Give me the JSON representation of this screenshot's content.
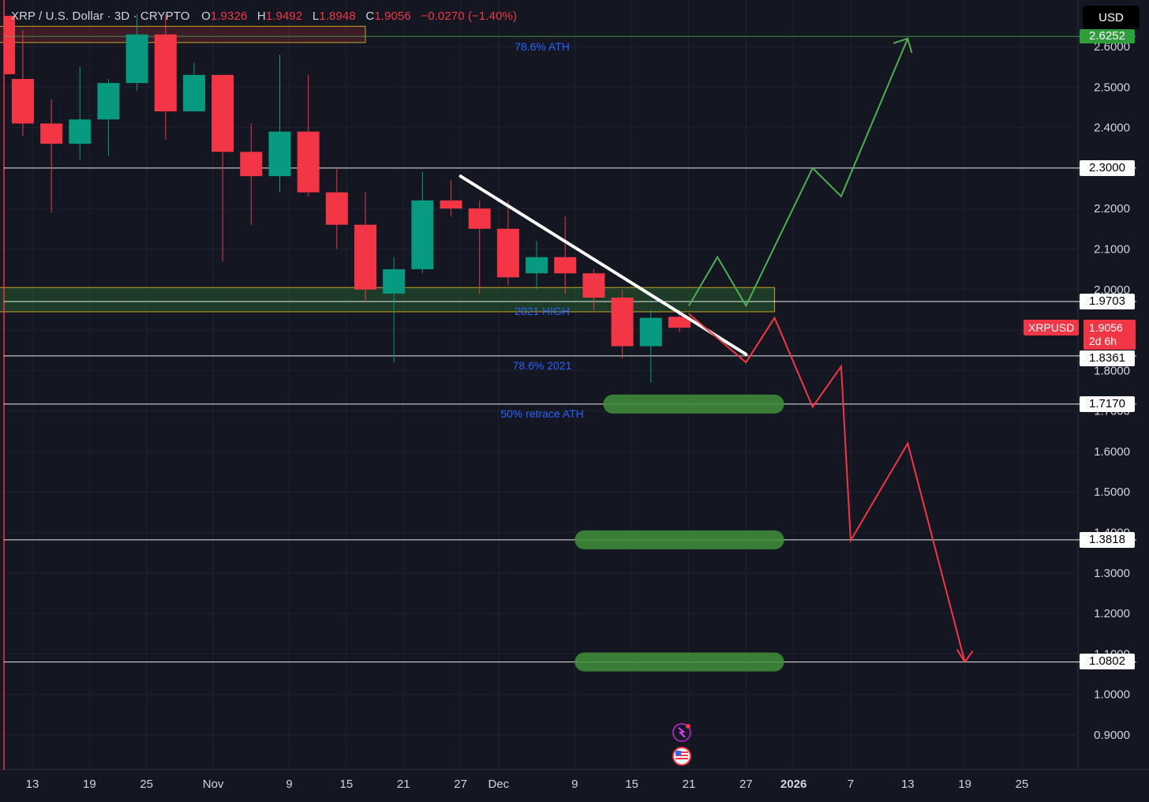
{
  "header": {
    "symbol": "XRP / U.S. Dollar · 3D · CRYPTO",
    "o_label": "O",
    "o_value": "1.9326",
    "h_label": "H",
    "h_value": "1.9492",
    "l_label": "L",
    "l_value": "1.8948",
    "c_label": "C",
    "c_value": "1.9056",
    "change": "−0.0270 (−1.40%)"
  },
  "currency_button": "USD",
  "symbol_tag": "XRPUSD",
  "current_price": "1.9056",
  "countdown": "2d 6h",
  "ath_tag": "2.6252",
  "annotations": {
    "ath_786": "78.6% ATH",
    "high_2021": "2021 HIGH",
    "ret_786_2021": "78.6% 2021",
    "ret_50_ath": "50% retrace ATH"
  },
  "colors": {
    "background": "#141722",
    "up": "#089981",
    "down": "#f23645",
    "bullish_path": "#4caf50",
    "bearish_path": "#f23645",
    "annotation_text": "#2962ff",
    "zone_border": "#c9a227"
  },
  "icons": [
    "ai-sparkle-icon",
    "us-flag-icon"
  ],
  "chart_data": {
    "type": "candlestick",
    "timeframe": "3D",
    "y_axis": {
      "range": [
        0.86,
        2.66
      ],
      "ticks": [
        "2.6000",
        "2.5000",
        "2.4000",
        "2.3000",
        "2.2000",
        "2.1000",
        "2.0000",
        "1.9000",
        "1.8000",
        "1.7000",
        "1.6000",
        "1.5000",
        "1.4000",
        "1.3000",
        "1.2000",
        "1.1000",
        "1.0000",
        "0.9000"
      ],
      "tick_values": [
        2.6,
        2.5,
        2.4,
        2.3,
        2.2,
        2.1,
        2.0,
        1.9,
        1.8,
        1.7,
        1.6,
        1.5,
        1.4,
        1.3,
        1.2,
        1.1,
        1.0,
        0.9
      ]
    },
    "x_axis": {
      "labels": [
        "13",
        "19",
        "25",
        "Nov",
        "9",
        "15",
        "21",
        "27",
        "Dec",
        "9",
        "15",
        "21",
        "27",
        "2026",
        "7",
        "13",
        "19",
        "25"
      ],
      "label_dates": [
        "2025-10-13",
        "2025-10-19",
        "2025-10-25",
        "2025-11-01",
        "2025-11-09",
        "2025-11-15",
        "2025-11-21",
        "2025-11-27",
        "2025-12-01",
        "2025-12-09",
        "2025-12-15",
        "2025-12-21",
        "2025-12-27",
        "2026-01-01",
        "2026-01-07",
        "2026-01-13",
        "2026-01-19",
        "2026-01-25"
      ]
    },
    "candles": [
      {
        "date": "2025-10-09",
        "o": 2.53,
        "h": 2.66,
        "l": 2.53,
        "c": 2.53
      },
      {
        "date": "2025-10-12",
        "o": 2.52,
        "h": 2.64,
        "l": 2.38,
        "c": 2.41
      },
      {
        "date": "2025-10-15",
        "o": 2.41,
        "h": 2.47,
        "l": 2.19,
        "c": 2.36
      },
      {
        "date": "2025-10-18",
        "o": 2.36,
        "h": 2.55,
        "l": 2.32,
        "c": 2.42
      },
      {
        "date": "2025-10-21",
        "o": 2.42,
        "h": 2.52,
        "l": 2.33,
        "c": 2.51
      },
      {
        "date": "2025-10-24",
        "o": 2.51,
        "h": 2.68,
        "l": 2.49,
        "c": 2.63
      },
      {
        "date": "2025-10-27",
        "o": 2.63,
        "h": 2.68,
        "l": 2.37,
        "c": 2.44
      },
      {
        "date": "2025-10-30",
        "o": 2.44,
        "h": 2.56,
        "l": 2.44,
        "c": 2.53
      },
      {
        "date": "2025-11-02",
        "o": 2.53,
        "h": 2.53,
        "l": 2.07,
        "c": 2.34
      },
      {
        "date": "2025-11-05",
        "o": 2.34,
        "h": 2.41,
        "l": 2.16,
        "c": 2.28
      },
      {
        "date": "2025-11-08",
        "o": 2.28,
        "h": 2.58,
        "l": 2.24,
        "c": 2.39
      },
      {
        "date": "2025-11-11",
        "o": 2.39,
        "h": 2.53,
        "l": 2.23,
        "c": 2.24
      },
      {
        "date": "2025-11-14",
        "o": 2.24,
        "h": 2.3,
        "l": 2.1,
        "c": 2.16
      },
      {
        "date": "2025-11-17",
        "o": 2.16,
        "h": 2.24,
        "l": 1.97,
        "c": 2.0
      },
      {
        "date": "2025-11-20",
        "o": 1.99,
        "h": 2.08,
        "l": 1.82,
        "c": 2.05
      },
      {
        "date": "2025-11-23",
        "o": 2.05,
        "h": 2.29,
        "l": 2.04,
        "c": 2.22
      },
      {
        "date": "2025-11-26",
        "o": 2.22,
        "h": 2.27,
        "l": 2.18,
        "c": 2.2
      },
      {
        "date": "2025-11-29",
        "o": 2.2,
        "h": 2.22,
        "l": 1.99,
        "c": 2.15
      },
      {
        "date": "2025-12-02",
        "o": 2.15,
        "h": 2.22,
        "l": 2.01,
        "c": 2.03
      },
      {
        "date": "2025-12-05",
        "o": 2.04,
        "h": 2.12,
        "l": 2.0,
        "c": 2.08
      },
      {
        "date": "2025-12-08",
        "o": 2.08,
        "h": 2.18,
        "l": 1.99,
        "c": 2.04
      },
      {
        "date": "2025-12-11",
        "o": 2.04,
        "h": 2.05,
        "l": 1.95,
        "c": 1.98
      },
      {
        "date": "2025-12-14",
        "o": 1.98,
        "h": 2.0,
        "l": 1.83,
        "c": 1.86
      },
      {
        "date": "2025-12-17",
        "o": 1.86,
        "h": 1.95,
        "l": 1.77,
        "c": 1.93
      },
      {
        "date": "2025-12-20",
        "o": 1.9326,
        "h": 1.9492,
        "l": 1.8948,
        "c": 1.9056
      }
    ],
    "horizontal_levels": [
      {
        "price": 2.6252,
        "label": "2.6252",
        "color": "#4caf50"
      },
      {
        "price": 2.3,
        "label": "2.3000",
        "color": "#ffffff"
      },
      {
        "price": 1.9703,
        "label": "1.9703",
        "color": "#ffffff"
      },
      {
        "price": 1.8361,
        "label": "1.8361",
        "color": "#ffffff"
      },
      {
        "price": 1.717,
        "label": "1.7170",
        "color": "#ffffff"
      },
      {
        "price": 1.3818,
        "label": "1.3818",
        "color": "#ffffff"
      },
      {
        "price": 1.0802,
        "label": "1.0802",
        "color": "#ffffff"
      }
    ],
    "zones": [
      {
        "name": "ath-786-zone",
        "price_low": 2.61,
        "price_high": 2.65,
        "x_start": "2025-10-08",
        "x_end": "2025-11-17",
        "fill": "#f23645"
      },
      {
        "name": "high-2021-zone",
        "price_low": 1.945,
        "price_high": 2.005,
        "x_start": "2025-10-08",
        "x_end": "2025-12-30",
        "fill": "#2e7d32"
      }
    ],
    "target_bars": [
      {
        "price": 1.717,
        "x_start": "2025-12-12",
        "x_end": "2025-12-31"
      },
      {
        "price": 1.3818,
        "x_start": "2025-12-09",
        "x_end": "2025-12-31"
      },
      {
        "price": 1.0802,
        "x_start": "2025-12-09",
        "x_end": "2025-12-31"
      }
    ],
    "trendline": {
      "from": {
        "date": "2025-11-27",
        "price": 2.28
      },
      "to": {
        "date": "2025-12-27",
        "price": 1.84
      }
    },
    "bullish_projection": [
      {
        "date": "2025-12-21",
        "price": 1.96
      },
      {
        "date": "2025-12-24",
        "price": 2.08
      },
      {
        "date": "2025-12-27",
        "price": 1.96
      },
      {
        "date": "2026-01-03",
        "price": 2.3
      },
      {
        "date": "2026-01-06",
        "price": 2.23
      },
      {
        "date": "2026-01-13",
        "price": 2.62
      }
    ],
    "bearish_projection": [
      {
        "date": "2025-12-21",
        "price": 1.94
      },
      {
        "date": "2025-12-27",
        "price": 1.82
      },
      {
        "date": "2025-12-30",
        "price": 1.93
      },
      {
        "date": "2026-01-03",
        "price": 1.71
      },
      {
        "date": "2026-01-06",
        "price": 1.81
      },
      {
        "date": "2026-01-07",
        "price": 1.38
      },
      {
        "date": "2026-01-13",
        "price": 1.62
      },
      {
        "date": "2026-01-19",
        "price": 1.08
      }
    ]
  }
}
